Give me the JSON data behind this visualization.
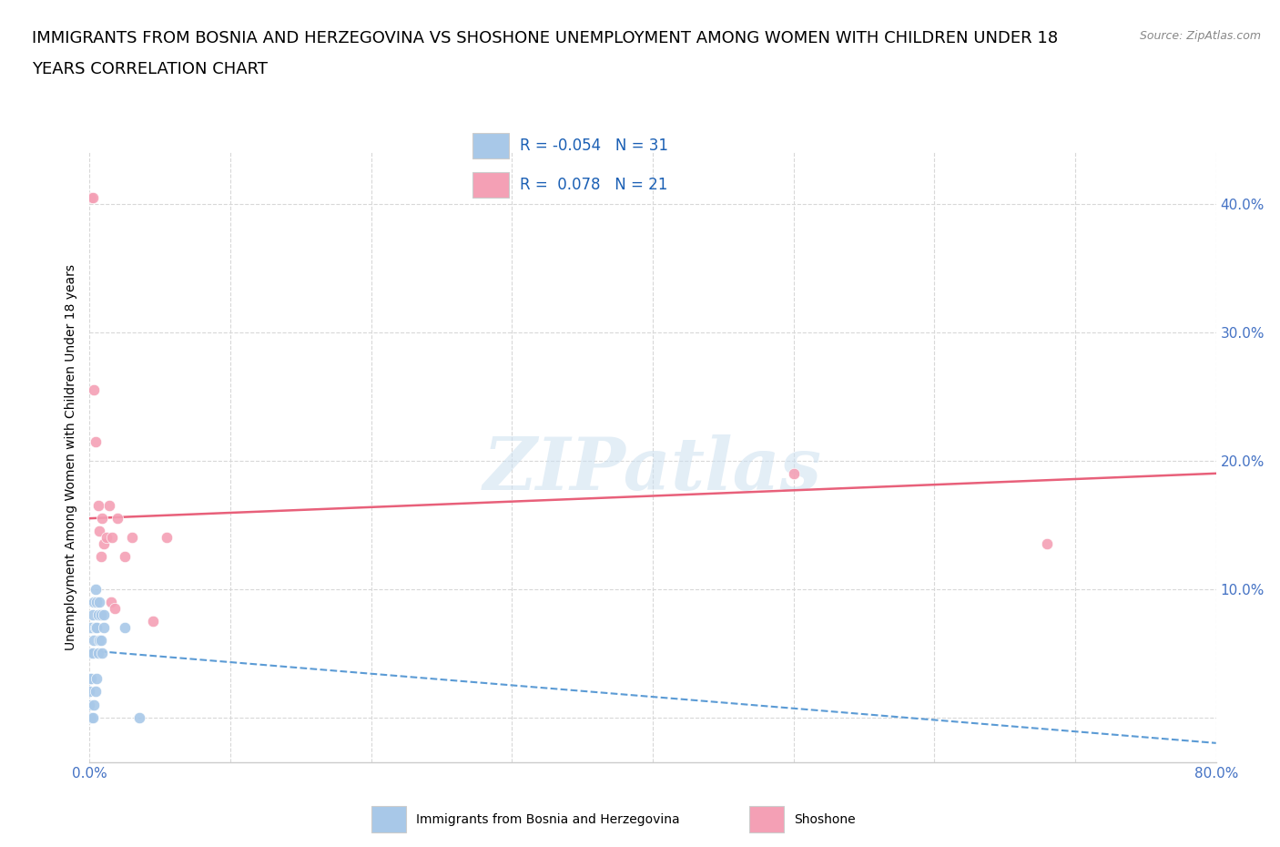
{
  "title_line1": "IMMIGRANTS FROM BOSNIA AND HERZEGOVINA VS SHOSHONE UNEMPLOYMENT AMONG WOMEN WITH CHILDREN UNDER 18",
  "title_line2": "YEARS CORRELATION CHART",
  "source": "Source: ZipAtlas.com",
  "ylabel": "Unemployment Among Women with Children Under 18 years",
  "xlim": [
    0.0,
    0.8
  ],
  "ylim": [
    -0.035,
    0.44
  ],
  "xticks": [
    0.0,
    0.1,
    0.2,
    0.3,
    0.4,
    0.5,
    0.6,
    0.7,
    0.8
  ],
  "xticklabels": [
    "0.0%",
    "",
    "",
    "",
    "",
    "",
    "",
    "",
    "80.0%"
  ],
  "yticks": [
    0.0,
    0.1,
    0.2,
    0.3,
    0.4
  ],
  "yticklabels": [
    "",
    "10.0%",
    "20.0%",
    "30.0%",
    "40.0%"
  ],
  "blue_color": "#a8c8e8",
  "pink_color": "#f4a0b5",
  "blue_line_color": "#5b9bd5",
  "pink_line_color": "#e8607a",
  "legend_R1": "-0.054",
  "legend_N1": "31",
  "legend_R2": "0.078",
  "legend_N2": "21",
  "watermark": "ZIPatlas",
  "blue_scatter_x": [
    0.0,
    0.0,
    0.0,
    0.0,
    0.0,
    0.001,
    0.001,
    0.001,
    0.002,
    0.002,
    0.002,
    0.003,
    0.003,
    0.003,
    0.004,
    0.004,
    0.004,
    0.005,
    0.005,
    0.005,
    0.006,
    0.006,
    0.007,
    0.007,
    0.008,
    0.008,
    0.009,
    0.01,
    0.01,
    0.025,
    0.035
  ],
  "blue_scatter_y": [
    0.0,
    0.01,
    0.02,
    0.03,
    0.05,
    0.0,
    0.03,
    0.07,
    0.0,
    0.05,
    0.08,
    0.01,
    0.06,
    0.09,
    0.02,
    0.07,
    0.1,
    0.03,
    0.07,
    0.09,
    0.05,
    0.08,
    0.06,
    0.09,
    0.06,
    0.08,
    0.05,
    0.07,
    0.08,
    0.07,
    0.0
  ],
  "pink_scatter_x": [
    0.001,
    0.002,
    0.003,
    0.004,
    0.006,
    0.007,
    0.008,
    0.009,
    0.01,
    0.012,
    0.014,
    0.015,
    0.016,
    0.018,
    0.02,
    0.025,
    0.03,
    0.045,
    0.055,
    0.5,
    0.68
  ],
  "pink_scatter_y": [
    0.405,
    0.405,
    0.255,
    0.215,
    0.165,
    0.145,
    0.125,
    0.155,
    0.135,
    0.14,
    0.165,
    0.09,
    0.14,
    0.085,
    0.155,
    0.125,
    0.14,
    0.075,
    0.14,
    0.19,
    0.135
  ],
  "blue_trend_x": [
    0.0,
    0.8
  ],
  "blue_trend_y": [
    0.052,
    -0.02
  ],
  "pink_trend_x": [
    0.0,
    0.8
  ],
  "pink_trend_y": [
    0.155,
    0.19
  ],
  "background_color": "#ffffff",
  "grid_color": "#d8d8d8",
  "title_fontsize": 13,
  "axis_label_fontsize": 10,
  "tick_fontsize": 11,
  "tick_color": "#4472c4",
  "legend_text_color": "#1a5fb4"
}
